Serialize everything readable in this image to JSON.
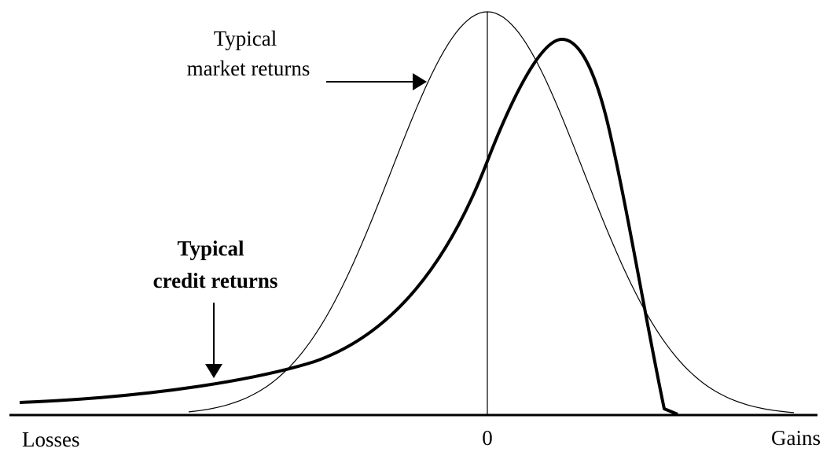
{
  "labels": {
    "market_line1": "Typical",
    "market_line2": "market returns",
    "credit_line1": "Typical",
    "credit_line2": "credit returns"
  },
  "axis": {
    "left": "Losses",
    "center": "0",
    "right": "Gains"
  }
}
